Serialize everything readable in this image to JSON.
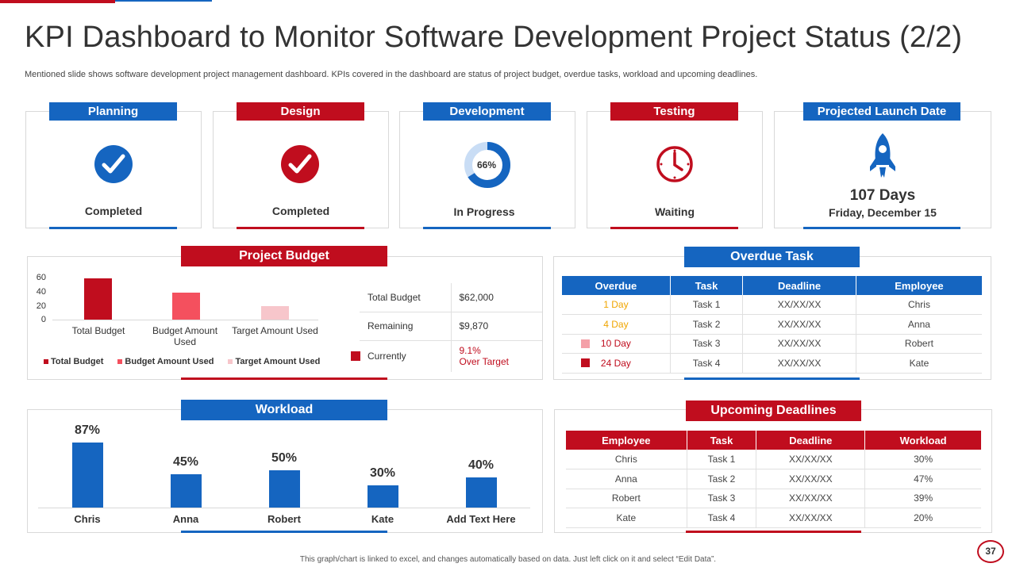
{
  "title": "KPI Dashboard to Monitor Software Development Project Status (2/2)",
  "subtitle": "Mentioned slide shows software development project management dashboard. KPIs covered in the dashboard are status of project budget, overdue tasks, workload and upcoming deadlines.",
  "colors": {
    "blue": "#1565c0",
    "red": "#c00d1e",
    "pink": "#f4505e",
    "light_pink": "#f7c6cb",
    "orange": "#f0a500"
  },
  "kpis": {
    "planning": {
      "label": "Planning",
      "status": "Completed",
      "icon": "check-circle-icon"
    },
    "design": {
      "label": "Design",
      "status": "Completed",
      "icon": "check-circle-icon"
    },
    "development": {
      "label": "Development",
      "status": "In Progress",
      "progress_text": "66%",
      "progress": 0.66,
      "icon": "donut-progress-icon"
    },
    "testing": {
      "label": "Testing",
      "status": "Waiting",
      "icon": "clock-icon"
    },
    "launch": {
      "label": "Projected Launch Date",
      "days": "107 Days",
      "date": "Friday, December 15",
      "icon": "rocket-icon"
    }
  },
  "budget": {
    "header": "Project Budget",
    "chart_data": {
      "type": "bar",
      "categories": [
        "Total Budget",
        "Budget Amount Used",
        "Target Amount Used"
      ],
      "series": [
        {
          "name": "Total Budget",
          "values": [
            58,
            0,
            0
          ]
        },
        {
          "name": "Budget Amount Used",
          "values": [
            0,
            38,
            0
          ]
        },
        {
          "name": "Target Amount Used",
          "values": [
            0,
            0,
            19
          ]
        }
      ],
      "values": [
        58,
        38,
        19
      ],
      "yticks": [
        "60",
        "40",
        "20",
        "0"
      ],
      "ylim": [
        0,
        60
      ],
      "legend": [
        "Total Budget",
        "Budget Amount Used",
        "Target Amount Used"
      ]
    },
    "table": [
      {
        "label": "Total Budget",
        "value": "$62,000"
      },
      {
        "label": "Remaining",
        "value": "$9,870"
      },
      {
        "label": "Currently",
        "value_line1": "9.1%",
        "value_line2": "Over Target"
      }
    ]
  },
  "overdue": {
    "header": "Overdue Task",
    "columns": [
      "Overdue",
      "Task",
      "Deadline",
      "Employee"
    ],
    "rows": [
      {
        "overdue": "1 Day",
        "task": "Task 1",
        "deadline": "XX/XX/XX",
        "employee": "Chris"
      },
      {
        "overdue": "4 Day",
        "task": "Task 2",
        "deadline": "XX/XX/XX",
        "employee": "Anna"
      },
      {
        "overdue": "10 Day",
        "task": "Task 3",
        "deadline": "XX/XX/XX",
        "employee": "Robert"
      },
      {
        "overdue": "24 Day",
        "task": "Task 4",
        "deadline": "XX/XX/XX",
        "employee": "Kate"
      }
    ]
  },
  "workload": {
    "header": "Workload",
    "chart_data": {
      "type": "bar",
      "categories": [
        "Chris",
        "Anna",
        "Robert",
        "Kate",
        "Add Text Here"
      ],
      "values": [
        87,
        45,
        50,
        30,
        40
      ],
      "labels": [
        "87%",
        "45%",
        "50%",
        "30%",
        "40%"
      ],
      "ylim": [
        0,
        100
      ]
    }
  },
  "deadlines": {
    "header": "Upcoming Deadlines",
    "columns": [
      "Employee",
      "Task",
      "Deadline",
      "Workload"
    ],
    "rows": [
      {
        "employee": "Chris",
        "task": "Task 1",
        "deadline": "XX/XX/XX",
        "workload": "30%"
      },
      {
        "employee": "Anna",
        "task": "Task 2",
        "deadline": "XX/XX/XX",
        "workload": "47%"
      },
      {
        "employee": "Robert",
        "task": "Task 3",
        "deadline": "XX/XX/XX",
        "workload": "39%"
      },
      {
        "employee": "Kate",
        "task": "Task 4",
        "deadline": "XX/XX/XX",
        "workload": "20%"
      }
    ]
  },
  "footer": "This graph/chart is linked to excel, and changes automatically based on data. Just left click on it and select “Edit Data”.",
  "page_number": "37"
}
